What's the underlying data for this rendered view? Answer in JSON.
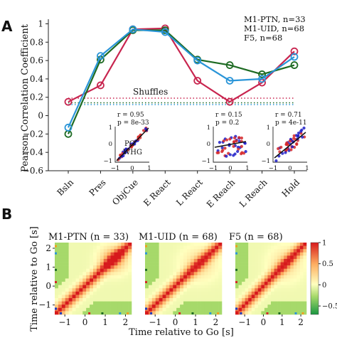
{
  "chart_data": [
    {
      "panel_label": "A",
      "type": "line",
      "ylabel": "Pearson Correlation Coefficient",
      "ylim": [
        -0.6,
        1.05
      ],
      "yticks": [
        "1",
        "0.8",
        "0.6",
        "0.4",
        "0.2",
        "0",
        "−0.2",
        "−0.4",
        "−0.6"
      ],
      "ytick_values": [
        1,
        0.8,
        0.6,
        0.4,
        0.2,
        0,
        -0.2,
        -0.4,
        -0.6
      ],
      "categories": [
        "Bsln",
        "Pres",
        "ObjCue",
        "E React",
        "L React",
        "E Reach",
        "L Reach",
        "Hold"
      ],
      "series": [
        {
          "name": "M1-PTN, n=33",
          "color": "#c8254f",
          "values": [
            0.15,
            0.33,
            0.94,
            0.95,
            0.38,
            0.15,
            0.36,
            0.7
          ]
        },
        {
          "name": "M1-UID, n=68",
          "color": "#1e6b23",
          "values": [
            -0.2,
            0.61,
            0.93,
            0.93,
            0.61,
            0.55,
            0.45,
            0.55
          ]
        },
        {
          "name": "F5, n=68",
          "color": "#2a95d8",
          "values": [
            -0.13,
            0.65,
            0.94,
            0.91,
            0.6,
            0.38,
            0.4,
            0.64
          ]
        }
      ],
      "shuffle_label": "Shuffles",
      "shuffle_values": {
        "M1-PTN": 0.19,
        "M1-UID": 0.14,
        "F5": 0.12
      },
      "legend_position": "top-right",
      "insets": [
        {
          "stats": [
            "r = 0.95",
            "p = 8e-33"
          ],
          "legend": [
            "PG",
            "WHG"
          ],
          "legend_colors": [
            "#d62728",
            "#1f1fc8"
          ],
          "xticks": [
            "−1",
            "0",
            "1"
          ],
          "yticks": [
            "1",
            "0",
            "−1"
          ]
        },
        {
          "stats": [
            "r = 0.15",
            "p = 0.2"
          ],
          "xticks": [
            "−1",
            "0",
            "1"
          ],
          "yticks": [
            "1",
            "0",
            "−1"
          ]
        },
        {
          "stats": [
            "r = 0.71",
            "p = 4e-11"
          ],
          "xticks": [
            "−1",
            "0",
            "1"
          ],
          "yticks": [
            "1",
            "0",
            "−1"
          ]
        }
      ]
    },
    {
      "panel_label": "B",
      "type": "heatmap",
      "panels": [
        "M1-PTN (n = 33)",
        "M1-UID (n = 68)",
        "F5 (n = 68)"
      ],
      "xlabel": "Time relative to Go [s]",
      "ylabel": "Time relative to Go [s]",
      "xticks": [
        "−1",
        "0",
        "1",
        "2"
      ],
      "yticks": [
        "2",
        "1",
        "0",
        "−1"
      ],
      "colorbar_ticks": [
        "1",
        "0.5",
        "0",
        "−0.5"
      ],
      "colorbar_values": [
        1,
        0.5,
        0,
        -0.5
      ],
      "clim": [
        -0.7,
        1
      ]
    }
  ]
}
